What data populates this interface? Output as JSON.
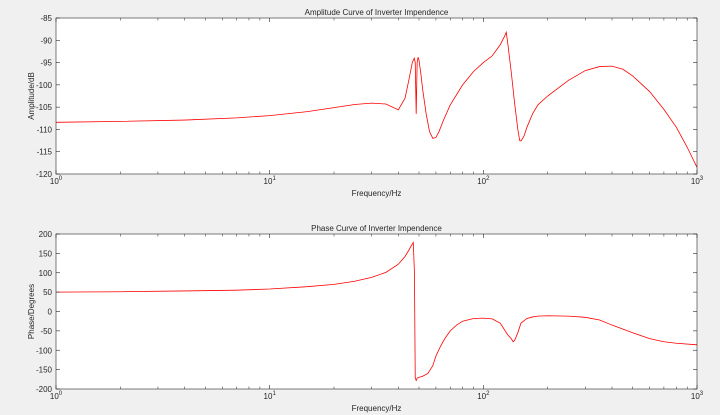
{
  "figure": {
    "background": "#f0f0f0",
    "axes_background": "#ffffff",
    "line_color": "#ff0000"
  },
  "chart_data": [
    {
      "type": "line",
      "title": "Amplitude Curve of Inverter Impendence",
      "xlabel": "Frequency/Hz",
      "ylabel": "Amplitude/dB",
      "xscale": "log",
      "xlim": [
        1,
        1000
      ],
      "ylim": [
        -120,
        -85
      ],
      "xticks": [
        {
          "base": "10",
          "exp": "0"
        },
        {
          "base": "10",
          "exp": "1"
        },
        {
          "base": "10",
          "exp": "2"
        },
        {
          "base": "10",
          "exp": "3"
        }
      ],
      "yticks": [
        -120,
        -115,
        -110,
        -105,
        -100,
        -95,
        -90,
        -85
      ],
      "grid": false,
      "series": [
        {
          "x": [
            1,
            2,
            4,
            7,
            10,
            15,
            20,
            25,
            30,
            35,
            40,
            43,
            45,
            46.5,
            47.5,
            48,
            48.5,
            49,
            49.5,
            50,
            51,
            52,
            54,
            56,
            58,
            60,
            62,
            65,
            70,
            80,
            90,
            100,
            110,
            120,
            126,
            128,
            130,
            135,
            140,
            145,
            148,
            150,
            155,
            160,
            170,
            180,
            200,
            250,
            300,
            350,
            400,
            450,
            500,
            600,
            700,
            800,
            900,
            1000
          ],
          "y": [
            -108.4,
            -108.2,
            -107.9,
            -107.4,
            -106.9,
            -106.0,
            -105.1,
            -104.4,
            -104.1,
            -104.3,
            -105.6,
            -103.0,
            -98.5,
            -95.0,
            -94.0,
            -95.0,
            -106.5,
            -95.0,
            -93.8,
            -94.5,
            -97.5,
            -101.0,
            -106.5,
            -110.5,
            -112.0,
            -111.8,
            -110.5,
            -108.0,
            -104.5,
            -100.0,
            -97.0,
            -95.0,
            -93.5,
            -91.0,
            -89.0,
            -88.2,
            -90.5,
            -97.0,
            -104.0,
            -110.0,
            -112.5,
            -112.6,
            -111.5,
            -109.5,
            -106.5,
            -104.5,
            -102.5,
            -99.0,
            -96.8,
            -95.9,
            -95.8,
            -96.5,
            -98.0,
            -101.5,
            -105.5,
            -109.5,
            -114.0,
            -118.5
          ]
        }
      ]
    },
    {
      "type": "line",
      "title": "Phase Curve of Inverter Impendence",
      "xlabel": "Frequency/Hz",
      "ylabel": "Phase/Degrees",
      "xscale": "log",
      "xlim": [
        1,
        1000
      ],
      "ylim": [
        -200,
        200
      ],
      "xticks": [
        {
          "base": "10",
          "exp": "0"
        },
        {
          "base": "10",
          "exp": "1"
        },
        {
          "base": "10",
          "exp": "2"
        },
        {
          "base": "10",
          "exp": "3"
        }
      ],
      "yticks": [
        -200,
        -150,
        -100,
        -50,
        0,
        50,
        100,
        150,
        200
      ],
      "grid": false,
      "series": [
        {
          "x": [
            1,
            2,
            4,
            7,
            10,
            15,
            20,
            25,
            30,
            35,
            40,
            43,
            45,
            46,
            47,
            47.6,
            48,
            48.5,
            49,
            50,
            52,
            55,
            58,
            60,
            63,
            66,
            70,
            75,
            80,
            90,
            100,
            110,
            120,
            130,
            135,
            138,
            140,
            145,
            150,
            160,
            170,
            180,
            200,
            250,
            300,
            350,
            400,
            500,
            600,
            700,
            800,
            1000
          ],
          "y": [
            50,
            51,
            53,
            55,
            58,
            64,
            70,
            78,
            88,
            101,
            122,
            142,
            160,
            170,
            178,
            100,
            -170,
            -178,
            -172,
            -170,
            -167,
            -160,
            -140,
            -115,
            -90,
            -70,
            -50,
            -35,
            -25,
            -18,
            -17,
            -19,
            -30,
            -60,
            -70,
            -78,
            -75,
            -55,
            -30,
            -18,
            -14,
            -12,
            -11,
            -12,
            -15,
            -22,
            -35,
            -55,
            -70,
            -78,
            -82,
            -86
          ]
        }
      ]
    }
  ]
}
